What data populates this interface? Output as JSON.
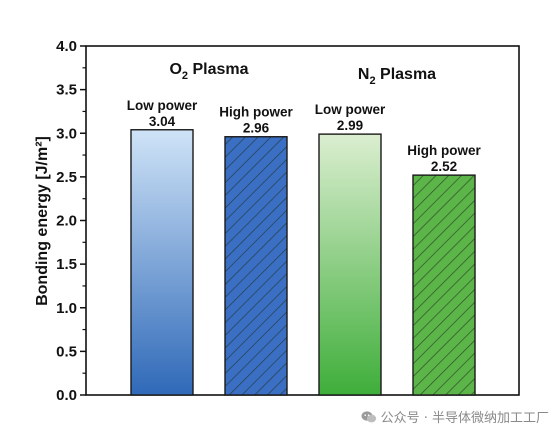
{
  "chart_data": {
    "type": "bar",
    "ylabel": "Bonding energy [J/m²]",
    "ylim": [
      0,
      4.0
    ],
    "yticks": [
      "0.0",
      "0.5",
      "1.0",
      "1.5",
      "2.0",
      "2.5",
      "3.0",
      "3.5",
      "4.0"
    ],
    "groups": [
      {
        "title_main": "O",
        "title_sub": "2",
        "title_rest": " Plasma"
      },
      {
        "title_main": "N",
        "title_sub": "2",
        "title_rest": " Plasma"
      }
    ],
    "bars": [
      {
        "label": "Low power",
        "value": 3.04,
        "value_label": "3.04",
        "group": 0,
        "gradient": [
          "#cfe3f7",
          "#2f69b8"
        ],
        "hatched": false,
        "edge": "#1a1a1a"
      },
      {
        "label": "High power",
        "value": 2.96,
        "value_label": "2.96",
        "group": 0,
        "fill": "#3a6fc4",
        "hatched": true,
        "edge": "#1a1a1a"
      },
      {
        "label": "Low power",
        "value": 2.99,
        "value_label": "2.99",
        "group": 1,
        "gradient": [
          "#dbeed0",
          "#3fae3a"
        ],
        "hatched": false,
        "edge": "#1a1a1a"
      },
      {
        "label": "High power",
        "value": 2.52,
        "value_label": "2.52",
        "group": 1,
        "fill": "#5cb548",
        "hatched": true,
        "edge": "#1a1a1a"
      }
    ]
  },
  "watermark": {
    "icon": "wechat-icon",
    "text": "公众号 · 半导体微纳加工工厂"
  }
}
